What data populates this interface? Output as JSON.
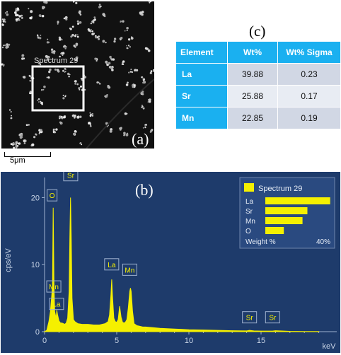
{
  "panels": {
    "a_label": "(a)",
    "b_label": "(b)",
    "c_label": "(c)"
  },
  "sem": {
    "spectrum_box_label": "Spectrum 29",
    "scale_bar_label": "5μm"
  },
  "table": {
    "headers": [
      "Element",
      "Wt%",
      "Wt% Sigma"
    ],
    "rows": [
      {
        "element": "La",
        "wt": "39.88",
        "sigma": "0.23"
      },
      {
        "element": "Sr",
        "wt": "25.88",
        "sigma": "0.17"
      },
      {
        "element": "Mn",
        "wt": "22.85",
        "sigma": "0.19"
      }
    ]
  },
  "colors": {
    "spectrum_bg": "#1e3b6b",
    "trace": "#f5f000",
    "table_header": "#1ab0f0"
  },
  "chart_data": {
    "type": "area",
    "title": "",
    "xlabel": "keV",
    "ylabel": "cps/eV",
    "xlim": [
      0,
      20
    ],
    "ylim": [
      0,
      23
    ],
    "x_ticks": [
      "0",
      "5",
      "10",
      "15"
    ],
    "y_ticks": [
      "0",
      "10",
      "20"
    ],
    "series": [
      {
        "name": "Spectrum 29",
        "x": [
          0,
          0.15,
          0.3,
          0.4,
          0.5,
          0.55,
          0.6,
          0.65,
          0.7,
          0.8,
          0.85,
          0.9,
          1.0,
          1.1,
          1.2,
          1.3,
          1.4,
          1.5,
          1.6,
          1.7,
          1.75,
          1.8,
          1.85,
          1.9,
          2.0,
          2.1,
          2.3,
          2.6,
          3.0,
          3.4,
          3.8,
          4.2,
          4.4,
          4.5,
          4.6,
          4.65,
          4.7,
          4.8,
          4.9,
          5.0,
          5.1,
          5.2,
          5.3,
          5.4,
          5.5,
          5.6,
          5.7,
          5.8,
          5.9,
          5.95,
          6.0,
          6.1,
          6.2,
          6.4,
          6.6,
          6.8,
          7.0,
          7.5,
          8.0,
          9.0,
          10.0,
          11.0,
          12.0,
          13.0,
          14.0,
          14.2,
          14.5,
          15.0,
          15.8,
          16.0,
          17.0,
          18.0,
          19.0
        ],
        "y": [
          0,
          0.2,
          1.5,
          3.0,
          5.5,
          7.0,
          18.5,
          7.0,
          3.0,
          2.0,
          3.2,
          2.5,
          1.6,
          1.3,
          1.3,
          1.2,
          1.1,
          1.3,
          2.0,
          6.0,
          14.0,
          20.0,
          14.0,
          5.0,
          1.8,
          1.5,
          1.2,
          1.1,
          1.1,
          1.0,
          1.0,
          1.2,
          1.5,
          2.5,
          5.5,
          7.8,
          5.5,
          2.0,
          1.5,
          1.4,
          1.8,
          3.8,
          2.2,
          1.4,
          1.3,
          1.4,
          1.8,
          3.5,
          6.0,
          6.5,
          6.0,
          3.0,
          1.2,
          0.9,
          0.8,
          0.7,
          0.7,
          0.6,
          0.5,
          0.4,
          0.3,
          0.25,
          0.2,
          0.15,
          0.12,
          0.2,
          0.12,
          0.1,
          0.1,
          0.15,
          0.05,
          0.03,
          0.02
        ]
      }
    ],
    "peak_labels": [
      {
        "label": "O",
        "x": 0.52,
        "y": 19.5
      },
      {
        "label": "Sr",
        "x": 1.81,
        "y": 22.5
      },
      {
        "label": "Mn",
        "x": 0.64,
        "y": 5.9
      },
      {
        "label": "La",
        "x": 0.83,
        "y": 3.3
      },
      {
        "label": "La",
        "x": 4.65,
        "y": 9.2
      },
      {
        "label": "Mn",
        "x": 5.9,
        "y": 8.4
      },
      {
        "label": "Sr",
        "x": 14.2,
        "y": 1.3
      },
      {
        "label": "Sr",
        "x": 15.8,
        "y": 1.3
      }
    ],
    "legend": {
      "position": "top-right",
      "title": "Spectrum 29",
      "bars": [
        {
          "label": "La",
          "value": 39.88
        },
        {
          "label": "Sr",
          "value": 25.88
        },
        {
          "label": "Mn",
          "value": 22.85
        },
        {
          "label": "O",
          "value": 11.39
        }
      ],
      "footer_left": "Weight %",
      "footer_right": "40%",
      "bar_max": 40
    }
  }
}
